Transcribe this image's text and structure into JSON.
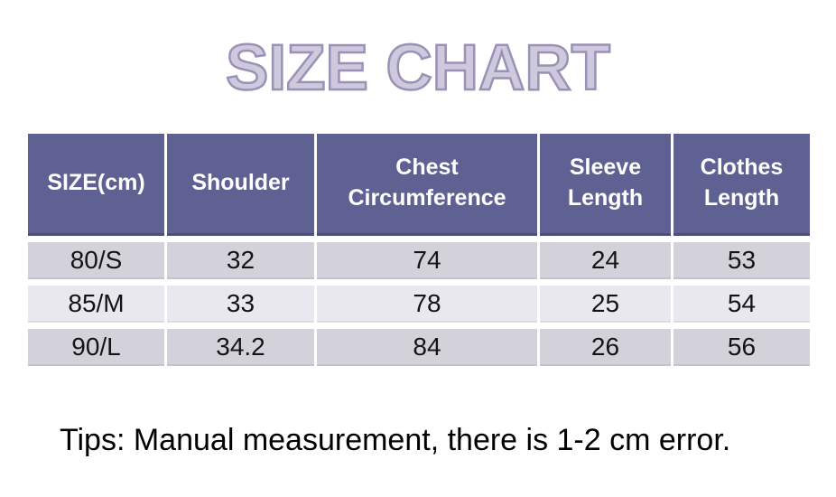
{
  "chart_data": {
    "type": "table",
    "title": "SIZE CHART",
    "columns": [
      "SIZE(cm)",
      "Shoulder",
      "Chest Circumference",
      "Sleeve Length",
      "Clothes Length"
    ],
    "rows": [
      [
        "80/S",
        "32",
        "74",
        "24",
        "53"
      ],
      [
        "85/M",
        "33",
        "78",
        "25",
        "54"
      ],
      [
        "90/L",
        "34.2",
        "84",
        "26",
        "56"
      ]
    ],
    "note": "Tips: Manual measurement, there is 1-2 cm error.",
    "layout": {
      "grid": "white gutters between cells",
      "legend": "none"
    }
  },
  "colors": {
    "title_fill": "#cfc9dd",
    "title_outline": "#9a92b6",
    "header_bg": "#5f6192",
    "header_text": "#ffffff",
    "header_border": "#4c4f7a",
    "row_odd_bg": "#d3d2da",
    "row_even_bg": "#e9e8ee",
    "cell_text": "#141414",
    "gutter": "#ffffff",
    "page_bg": "#ffffff"
  }
}
